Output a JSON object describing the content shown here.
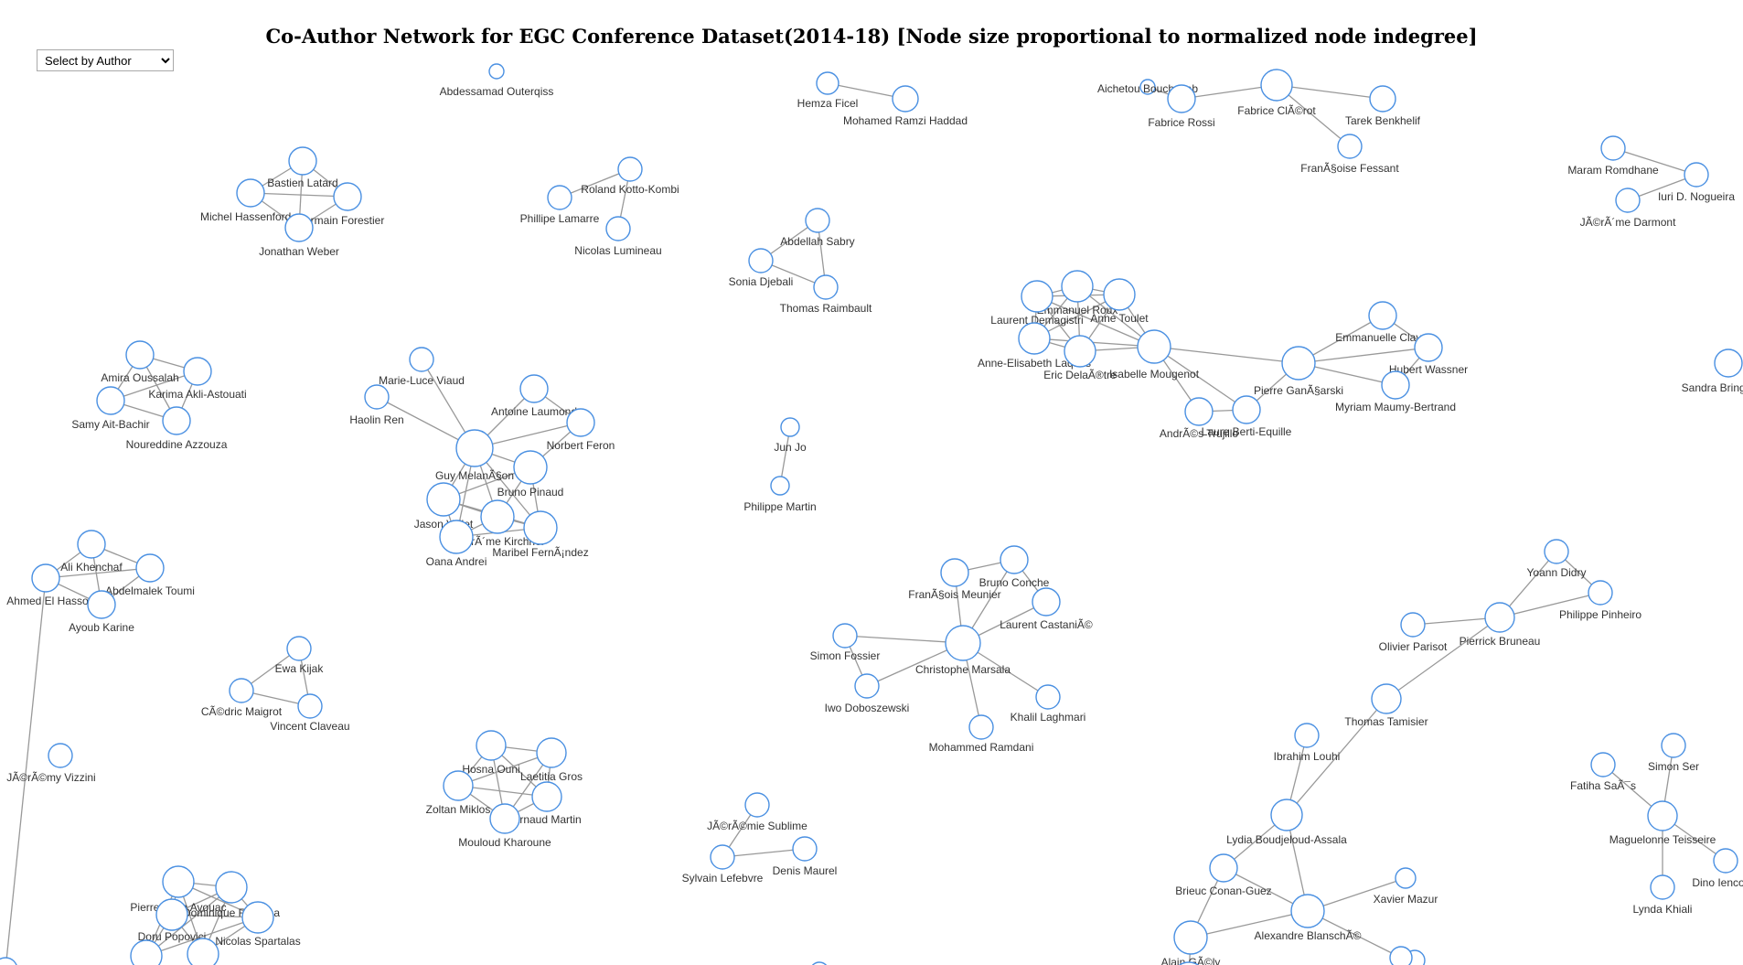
{
  "header": {
    "title": "Co-Author Network for EGC Conference Dataset(2014-18) [Node size proportional to normalized node indegree]"
  },
  "author_select": {
    "selected": "Select by Author",
    "options": [
      "Select by Author"
    ]
  },
  "colors": {
    "node_stroke": "#4a90e2",
    "node_fill": "#ffffff",
    "link": "#999999",
    "label": "#333333"
  },
  "network": {
    "nodes": [
      {
        "id": "n1",
        "label": "Abdessamad Outerqiss"
      },
      {
        "id": "n2",
        "label": "Hemza Ficel"
      },
      {
        "id": "n3",
        "label": "Mohamed Ramzi Haddad"
      },
      {
        "id": "n4",
        "label": "Aichetou Bouchekab"
      },
      {
        "id": "n5",
        "label": "Fabrice Rossi"
      },
      {
        "id": "n6",
        "label": "Fabrice ClÃ©rot"
      },
      {
        "id": "n7",
        "label": "Tarek Benkhelif"
      },
      {
        "id": "n8",
        "label": "FranÃ§oise Fessant"
      },
      {
        "id": "n9",
        "label": "Bastien Latard"
      },
      {
        "id": "n10",
        "label": "Michel Hassenforder"
      },
      {
        "id": "n11",
        "label": "Germain Forestier"
      },
      {
        "id": "n12",
        "label": "Jonathan Weber"
      },
      {
        "id": "n13",
        "label": "Roland Kotto-Kombi"
      },
      {
        "id": "n14",
        "label": "Phillipe Lamarre"
      },
      {
        "id": "n15",
        "label": "Nicolas Lumineau"
      },
      {
        "id": "n16",
        "label": "Abdellah Sabry"
      },
      {
        "id": "n17",
        "label": "Sonia Djebali"
      },
      {
        "id": "n18",
        "label": "Thomas Raimbault"
      },
      {
        "id": "n19",
        "label": "Maram Romdhane"
      },
      {
        "id": "n20",
        "label": "Iuri D. Nogueira"
      },
      {
        "id": "n21",
        "label": "JÃ©rÃ´me Darmont"
      },
      {
        "id": "n22",
        "label": "Emmanuel Roux"
      },
      {
        "id": "n23",
        "label": "Laurent Demagistri"
      },
      {
        "id": "n24",
        "label": "Anne Toulet"
      },
      {
        "id": "n25",
        "label": "Anne-Elisabeth Laques"
      },
      {
        "id": "n26",
        "label": "Eric DelaÃ®tre"
      },
      {
        "id": "n27",
        "label": "Isabelle Mougenot"
      },
      {
        "id": "n28",
        "label": "AndrÃ©s Trujillo"
      },
      {
        "id": "n29",
        "label": "Laure Berti-Equille"
      },
      {
        "id": "n30",
        "label": "Pierre GanÃ§arski"
      },
      {
        "id": "n31",
        "label": "Emmanuelle Clavel"
      },
      {
        "id": "n32",
        "label": "Hubert Wassner"
      },
      {
        "id": "n33",
        "label": "Myriam Maumy-Bertrand"
      },
      {
        "id": "n34",
        "label": "Amira Oussalah"
      },
      {
        "id": "n35",
        "label": "Karima Akli-Astouati"
      },
      {
        "id": "n36",
        "label": "Samy Ait-Bachir"
      },
      {
        "id": "n37",
        "label": "Noureddine Azzouza"
      },
      {
        "id": "n38",
        "label": "Marie-Luce Viaud"
      },
      {
        "id": "n39",
        "label": "Haolin Ren"
      },
      {
        "id": "n40",
        "label": "Antoine Laumond"
      },
      {
        "id": "n41",
        "label": "Norbert Feron"
      },
      {
        "id": "n42",
        "label": "Guy MelanÃ§on"
      },
      {
        "id": "n43",
        "label": "Bruno Pinaud"
      },
      {
        "id": "n44",
        "label": "Jason Vallet"
      },
      {
        "id": "n45",
        "label": "JÃ©rÃ´me Kirchner"
      },
      {
        "id": "n46",
        "label": "Maribel FernÃ¡ndez"
      },
      {
        "id": "n47",
        "label": "Oana Andrei"
      },
      {
        "id": "n48",
        "label": "Jun Jo"
      },
      {
        "id": "n49",
        "label": "Philippe Martin"
      },
      {
        "id": "n50",
        "label": "Ali Khenchaf"
      },
      {
        "id": "n51",
        "label": "Abdelmalek Toumi"
      },
      {
        "id": "n52",
        "label": "Ahmed El Hassouni"
      },
      {
        "id": "n53",
        "label": "Ayoub Karine"
      },
      {
        "id": "n54",
        "label": "FranÃ§ois Meunier"
      },
      {
        "id": "n55",
        "label": "Bruno Conche"
      },
      {
        "id": "n56",
        "label": "Laurent CastaniÃ©"
      },
      {
        "id": "n57",
        "label": "Simon Fossier"
      },
      {
        "id": "n58",
        "label": "Christophe Marsala"
      },
      {
        "id": "n59",
        "label": "Iwo Doboszewski"
      },
      {
        "id": "n60",
        "label": "Khalil Laghmari"
      },
      {
        "id": "n61",
        "label": "Mohammed Ramdani"
      },
      {
        "id": "n62",
        "label": "Yoann Didry"
      },
      {
        "id": "n63",
        "label": "Philippe Pinheiro"
      },
      {
        "id": "n64",
        "label": "Olivier Parisot"
      },
      {
        "id": "n65",
        "label": "Pierrick Bruneau"
      },
      {
        "id": "n66",
        "label": "Thomas Tamisier"
      },
      {
        "id": "n67",
        "label": "Ibrahim Louhi"
      },
      {
        "id": "n68",
        "label": "Lydia Boudjeloud-Assala"
      },
      {
        "id": "n69",
        "label": "Brieuc Conan-Guez"
      },
      {
        "id": "n70",
        "label": "Alexandre BlanschÃ©"
      },
      {
        "id": "n71",
        "label": "Xavier Mazur"
      },
      {
        "id": "n72",
        "label": "Alain GÃ©ly"
      },
      {
        "id": "n73",
        "label": "Ewa Kijak"
      },
      {
        "id": "n74",
        "label": "CÃ©dric Maigrot"
      },
      {
        "id": "n75",
        "label": "Vincent Claveau"
      },
      {
        "id": "n76",
        "label": "JÃ©rÃ©my Vizzini"
      },
      {
        "id": "n77",
        "label": "Hosna Ouni"
      },
      {
        "id": "n78",
        "label": "Laetitia Gros"
      },
      {
        "id": "n79",
        "label": "Zoltan Miklos"
      },
      {
        "id": "n80",
        "label": "Arnaud Martin"
      },
      {
        "id": "n81",
        "label": "Mouloud Kharoune"
      },
      {
        "id": "n82",
        "label": "JÃ©rÃ©mie Sublime"
      },
      {
        "id": "n83",
        "label": "Sylvain Lefebvre"
      },
      {
        "id": "n84",
        "label": "Denis Maurel"
      },
      {
        "id": "n85",
        "label": "Simon Ser"
      },
      {
        "id": "n86",
        "label": "Fatiha SaÃ¯s"
      },
      {
        "id": "n87",
        "label": "Maguelonne Teisseire"
      },
      {
        "id": "n88",
        "label": "Dino Ienco"
      },
      {
        "id": "n89",
        "label": "Lynda Khiali"
      },
      {
        "id": "n90",
        "label": "Pierre-Alain Avouac"
      },
      {
        "id": "n91",
        "label": "Dominique Ramona"
      },
      {
        "id": "n92",
        "label": "Doru Popovici"
      },
      {
        "id": "n93",
        "label": "Nicolas Spartalas"
      },
      {
        "id": "n94",
        "label": "Sandra Bringay"
      },
      {
        "id": "n95",
        "label": ""
      },
      {
        "id": "n96",
        "label": ""
      },
      {
        "id": "n97",
        "label": ""
      },
      {
        "id": "n98",
        "label": ""
      },
      {
        "id": "n99",
        "label": ""
      },
      {
        "id": "n100",
        "label": ""
      },
      {
        "id": "n101",
        "label": ""
      }
    ],
    "links": [
      [
        "n2",
        "n3"
      ],
      [
        "n4",
        "n5"
      ],
      [
        "n5",
        "n6"
      ],
      [
        "n6",
        "n7"
      ],
      [
        "n6",
        "n8"
      ],
      [
        "n9",
        "n10"
      ],
      [
        "n9",
        "n11"
      ],
      [
        "n9",
        "n12"
      ],
      [
        "n10",
        "n11"
      ],
      [
        "n10",
        "n12"
      ],
      [
        "n11",
        "n12"
      ],
      [
        "n13",
        "n14"
      ],
      [
        "n13",
        "n15"
      ],
      [
        "n16",
        "n17"
      ],
      [
        "n16",
        "n18"
      ],
      [
        "n17",
        "n18"
      ],
      [
        "n19",
        "n20"
      ],
      [
        "n20",
        "n21"
      ],
      [
        "n22",
        "n23"
      ],
      [
        "n22",
        "n24"
      ],
      [
        "n22",
        "n25"
      ],
      [
        "n22",
        "n26"
      ],
      [
        "n22",
        "n27"
      ],
      [
        "n23",
        "n24"
      ],
      [
        "n23",
        "n25"
      ],
      [
        "n23",
        "n26"
      ],
      [
        "n23",
        "n27"
      ],
      [
        "n24",
        "n25"
      ],
      [
        "n24",
        "n26"
      ],
      [
        "n24",
        "n27"
      ],
      [
        "n25",
        "n26"
      ],
      [
        "n25",
        "n27"
      ],
      [
        "n26",
        "n27"
      ],
      [
        "n27",
        "n28"
      ],
      [
        "n27",
        "n29"
      ],
      [
        "n27",
        "n30"
      ],
      [
        "n28",
        "n29"
      ],
      [
        "n29",
        "n30"
      ],
      [
        "n30",
        "n31"
      ],
      [
        "n30",
        "n32"
      ],
      [
        "n30",
        "n33"
      ],
      [
        "n31",
        "n32"
      ],
      [
        "n32",
        "n33"
      ],
      [
        "n34",
        "n35"
      ],
      [
        "n34",
        "n36"
      ],
      [
        "n34",
        "n37"
      ],
      [
        "n35",
        "n36"
      ],
      [
        "n35",
        "n37"
      ],
      [
        "n36",
        "n37"
      ],
      [
        "n38",
        "n42"
      ],
      [
        "n39",
        "n42"
      ],
      [
        "n40",
        "n42"
      ],
      [
        "n41",
        "n42"
      ],
      [
        "n40",
        "n41"
      ],
      [
        "n42",
        "n43"
      ],
      [
        "n42",
        "n44"
      ],
      [
        "n42",
        "n45"
      ],
      [
        "n42",
        "n46"
      ],
      [
        "n42",
        "n47"
      ],
      [
        "n43",
        "n44"
      ],
      [
        "n43",
        "n45"
      ],
      [
        "n43",
        "n46"
      ],
      [
        "n44",
        "n45"
      ],
      [
        "n44",
        "n46"
      ],
      [
        "n44",
        "n47"
      ],
      [
        "n45",
        "n46"
      ],
      [
        "n45",
        "n47"
      ],
      [
        "n46",
        "n47"
      ],
      [
        "n41",
        "n43"
      ],
      [
        "n48",
        "n49"
      ],
      [
        "n50",
        "n51"
      ],
      [
        "n50",
        "n52"
      ],
      [
        "n50",
        "n53"
      ],
      [
        "n51",
        "n52"
      ],
      [
        "n51",
        "n53"
      ],
      [
        "n52",
        "n53"
      ],
      [
        "n54",
        "n58"
      ],
      [
        "n55",
        "n58"
      ],
      [
        "n56",
        "n58"
      ],
      [
        "n57",
        "n58"
      ],
      [
        "n59",
        "n58"
      ],
      [
        "n60",
        "n58"
      ],
      [
        "n61",
        "n58"
      ],
      [
        "n54",
        "n55"
      ],
      [
        "n55",
        "n56"
      ],
      [
        "n57",
        "n59"
      ],
      [
        "n62",
        "n65"
      ],
      [
        "n63",
        "n65"
      ],
      [
        "n62",
        "n63"
      ],
      [
        "n64",
        "n65"
      ],
      [
        "n65",
        "n66"
      ],
      [
        "n66",
        "n68"
      ],
      [
        "n67",
        "n68"
      ],
      [
        "n68",
        "n69"
      ],
      [
        "n68",
        "n70"
      ],
      [
        "n69",
        "n70"
      ],
      [
        "n70",
        "n71"
      ],
      [
        "n70",
        "n72"
      ],
      [
        "n69",
        "n72"
      ],
      [
        "n70",
        "n101"
      ],
      [
        "n72",
        "n100"
      ],
      [
        "n73",
        "n74"
      ],
      [
        "n73",
        "n75"
      ],
      [
        "n74",
        "n75"
      ],
      [
        "n77",
        "n78"
      ],
      [
        "n77",
        "n79"
      ],
      [
        "n77",
        "n80"
      ],
      [
        "n77",
        "n81"
      ],
      [
        "n78",
        "n79"
      ],
      [
        "n78",
        "n80"
      ],
      [
        "n78",
        "n81"
      ],
      [
        "n79",
        "n80"
      ],
      [
        "n79",
        "n81"
      ],
      [
        "n80",
        "n81"
      ],
      [
        "n82",
        "n83"
      ],
      [
        "n83",
        "n84"
      ],
      [
        "n85",
        "n87"
      ],
      [
        "n86",
        "n87"
      ],
      [
        "n87",
        "n88"
      ],
      [
        "n87",
        "n89"
      ],
      [
        "n90",
        "n91"
      ],
      [
        "n90",
        "n92"
      ],
      [
        "n90",
        "n93"
      ],
      [
        "n91",
        "n92"
      ],
      [
        "n91",
        "n93"
      ],
      [
        "n92",
        "n93"
      ],
      [
        "n90",
        "n96"
      ],
      [
        "n91",
        "n96"
      ],
      [
        "n92",
        "n96"
      ],
      [
        "n93",
        "n96"
      ],
      [
        "n90",
        "n97"
      ],
      [
        "n91",
        "n97"
      ],
      [
        "n92",
        "n97"
      ],
      [
        "n93",
        "n97"
      ],
      [
        "n52",
        "n95"
      ]
    ]
  }
}
